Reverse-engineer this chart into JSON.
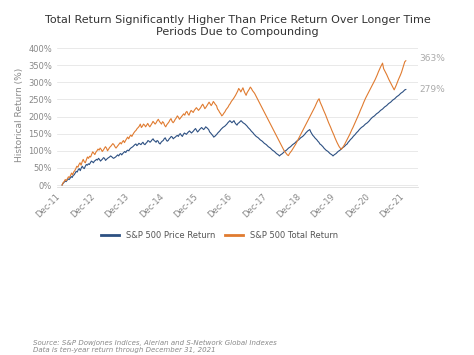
{
  "title": "Total Return Significantly Higher Than Price Return Over Longer Time\nPeriods Due to Compounding",
  "ylabel": "Historical Return (%)",
  "source_text": "Source: S&P Dowjones Indices, Alerian and S-Network Global Indexes\nData is ten-year return through December 31, 2021",
  "legend_labels": [
    "S&P 500 Price Return",
    "S&P 500 Total Return"
  ],
  "price_color": "#2d5082",
  "total_color": "#e07b30",
  "background_color": "#ffffff",
  "ylim": [
    -5,
    415
  ],
  "price_end_label": "279%",
  "total_end_label": "363%",
  "x_labels": [
    "Dec-11",
    "Dec-12",
    "Dec-13",
    "Dec-14",
    "Dec-15",
    "Dec-16",
    "Dec-17",
    "Dec-18",
    "Dec-19",
    "Dec-20",
    "Dec-21"
  ],
  "price_return": [
    0,
    5,
    8,
    12,
    10,
    14,
    18,
    16,
    20,
    25,
    22,
    28,
    30,
    35,
    40,
    38,
    45,
    48,
    42,
    50,
    55,
    50,
    48,
    55,
    60,
    58,
    62,
    60,
    65,
    70,
    68,
    65,
    70,
    72,
    75,
    73,
    78,
    75,
    70,
    73,
    76,
    80,
    78,
    72,
    75,
    78,
    80,
    82,
    85,
    83,
    80,
    78,
    80,
    82,
    85,
    88,
    85,
    90,
    92,
    88,
    92,
    95,
    98,
    95,
    100,
    102,
    100,
    105,
    108,
    110,
    112,
    115,
    118,
    120,
    115,
    118,
    122,
    120,
    118,
    122,
    125,
    120,
    118,
    122,
    125,
    130,
    128,
    125,
    128,
    132,
    135,
    130,
    128,
    125,
    130,
    128,
    122,
    120,
    125,
    128,
    130,
    135,
    138,
    132,
    128,
    130,
    135,
    138,
    142,
    140,
    135,
    138,
    140,
    143,
    145,
    142,
    148,
    150,
    145,
    142,
    148,
    152,
    150,
    148,
    152,
    155,
    158,
    155,
    152,
    155,
    158,
    162,
    165,
    160,
    155,
    158,
    162,
    165,
    168,
    165,
    162,
    165,
    170,
    168,
    165,
    162,
    155,
    152,
    148,
    145,
    140,
    142,
    145,
    148,
    152,
    155,
    158,
    162,
    165,
    168,
    170,
    172,
    175,
    178,
    182,
    185,
    188,
    185,
    182,
    185,
    188,
    182,
    178,
    175,
    180,
    182,
    185,
    188,
    185,
    182,
    180,
    178,
    175,
    172,
    168,
    165,
    162,
    158,
    155,
    152,
    148,
    145,
    142,
    140,
    138,
    135,
    132,
    130,
    128,
    125,
    122,
    120,
    118,
    115,
    112,
    110,
    108,
    105,
    102,
    100,
    98,
    95,
    92,
    90,
    88,
    85,
    88,
    90,
    92,
    95,
    98,
    100,
    102,
    105,
    108,
    110,
    112,
    115,
    118,
    120,
    122,
    125,
    128,
    130,
    132,
    135,
    138,
    140,
    142,
    145,
    148,
    152,
    155,
    158,
    160,
    162,
    155,
    150,
    145,
    142,
    138,
    135,
    132,
    128,
    125,
    120,
    118,
    115,
    112,
    108,
    105,
    102,
    100,
    98,
    95,
    92,
    90,
    88,
    85,
    88,
    90,
    92,
    95,
    98,
    100,
    102,
    105,
    108,
    110,
    112,
    115,
    118,
    120,
    125,
    128,
    132,
    135,
    138,
    142,
    145,
    148,
    152,
    155,
    158,
    162,
    165,
    168,
    170,
    172,
    175,
    178,
    180,
    182,
    185,
    188,
    192,
    195,
    198,
    200,
    202,
    205,
    208,
    210,
    212,
    215,
    218,
    220,
    222,
    225,
    228,
    230,
    232,
    235,
    238,
    240,
    242,
    245,
    248,
    250,
    252,
    255,
    258,
    260,
    262,
    265,
    268,
    270,
    272,
    275,
    278,
    279
  ],
  "total_return": [
    0,
    7,
    10,
    16,
    13,
    18,
    24,
    22,
    28,
    35,
    30,
    38,
    42,
    48,
    55,
    52,
    60,
    65,
    58,
    68,
    75,
    68,
    65,
    74,
    82,
    78,
    84,
    82,
    90,
    97,
    93,
    89,
    96,
    100,
    105,
    102,
    108,
    104,
    98,
    102,
    107,
    112,
    108,
    100,
    105,
    110,
    113,
    117,
    121,
    118,
    112,
    108,
    112,
    116,
    120,
    124,
    120,
    126,
    130,
    124,
    130,
    135,
    140,
    135,
    142,
    146,
    142,
    148,
    153,
    157,
    160,
    165,
    168,
    172,
    178,
    168,
    172,
    178,
    175,
    170,
    175,
    180,
    174,
    170,
    175,
    180,
    186,
    182,
    178,
    182,
    188,
    192,
    186,
    182,
    178,
    185,
    182,
    174,
    170,
    176,
    180,
    184,
    190,
    194,
    186,
    182,
    186,
    192,
    196,
    202,
    198,
    192,
    196,
    200,
    204,
    208,
    204,
    212,
    215,
    208,
    204,
    212,
    218,
    215,
    212,
    218,
    222,
    226,
    222,
    218,
    222,
    226,
    232,
    236,
    230,
    223,
    227,
    232,
    237,
    242,
    237,
    232,
    237,
    244,
    240,
    235,
    232,
    222,
    218,
    212,
    208,
    202,
    205,
    210,
    214,
    220,
    224,
    228,
    234,
    238,
    244,
    248,
    252,
    257,
    262,
    268,
    274,
    282,
    278,
    272,
    278,
    284,
    275,
    268,
    262,
    270,
    275,
    280,
    286,
    282,
    276,
    272,
    268,
    262,
    256,
    250,
    244,
    238,
    232,
    226,
    220,
    214,
    208,
    202,
    196,
    190,
    184,
    178,
    172,
    166,
    160,
    154,
    148,
    142,
    136,
    130,
    124,
    118,
    112,
    106,
    100,
    96,
    92,
    88,
    86,
    92,
    96,
    100,
    105,
    110,
    115,
    120,
    126,
    132,
    138,
    144,
    150,
    156,
    162,
    168,
    174,
    180,
    186,
    192,
    198,
    204,
    210,
    216,
    222,
    228,
    235,
    242,
    248,
    252,
    242,
    235,
    228,
    220,
    213,
    206,
    198,
    190,
    182,
    175,
    168,
    160,
    153,
    146,
    138,
    131,
    124,
    118,
    112,
    108,
    104,
    108,
    113,
    118,
    124,
    130,
    136,
    142,
    148,
    155,
    162,
    168,
    175,
    182,
    189,
    196,
    203,
    210,
    218,
    225,
    232,
    240,
    247,
    254,
    260,
    266,
    272,
    278,
    284,
    290,
    296,
    302,
    308,
    315,
    322,
    330,
    337,
    344,
    350,
    356,
    340,
    334,
    328,
    322,
    315,
    308,
    302,
    296,
    290,
    284,
    278,
    285,
    292,
    300,
    308,
    315,
    322,
    330,
    340,
    350,
    360,
    363
  ]
}
